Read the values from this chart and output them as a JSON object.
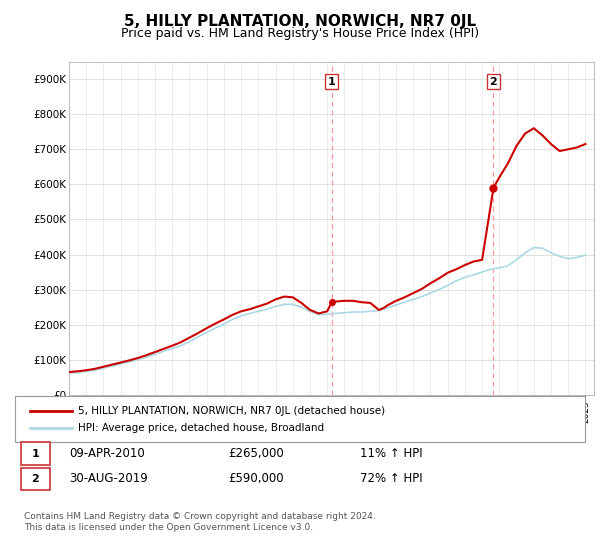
{
  "title": "5, HILLY PLANTATION, NORWICH, NR7 0JL",
  "subtitle": "Price paid vs. HM Land Registry's House Price Index (HPI)",
  "title_fontsize": 11,
  "subtitle_fontsize": 9,
  "ylim": [
    0,
    950000
  ],
  "yticks": [
    0,
    100000,
    200000,
    300000,
    400000,
    500000,
    600000,
    700000,
    800000,
    900000
  ],
  "ytick_labels": [
    "£0",
    "£100K",
    "£200K",
    "£300K",
    "£400K",
    "£500K",
    "£600K",
    "£700K",
    "£800K",
    "£900K"
  ],
  "hpi_color": "#add8e6",
  "price_color": "#cc0000",
  "dashed_line_color": "#ff9999",
  "background_color": "#ffffff",
  "grid_color": "#e0e0e0",
  "sale1_year": 2010.27,
  "sale1_price": 265000,
  "sale1_label": "1",
  "sale2_year": 2019.66,
  "sale2_price": 590000,
  "sale2_label": "2",
  "legend_entries": [
    "5, HILLY PLANTATION, NORWICH, NR7 0JL (detached house)",
    "HPI: Average price, detached house, Broadland"
  ],
  "table_rows": [
    {
      "num": "1",
      "date": "09-APR-2010",
      "price": "£265,000",
      "hpi": "11% ↑ HPI"
    },
    {
      "num": "2",
      "date": "30-AUG-2019",
      "price": "£590,000",
      "hpi": "72% ↑ HPI"
    }
  ],
  "footnote": "Contains HM Land Registry data © Crown copyright and database right 2024.\nThis data is licensed under the Open Government Licence v3.0.",
  "xmin": 1995,
  "xmax": 2025.5,
  "hpi_data_x": [
    1995.0,
    1995.5,
    1996.0,
    1996.5,
    1997.0,
    1997.5,
    1998.0,
    1998.5,
    1999.0,
    1999.5,
    2000.0,
    2000.5,
    2001.0,
    2001.5,
    2002.0,
    2002.5,
    2003.0,
    2003.5,
    2004.0,
    2004.5,
    2005.0,
    2005.5,
    2006.0,
    2006.5,
    2007.0,
    2007.5,
    2008.0,
    2008.5,
    2009.0,
    2009.5,
    2010.0,
    2010.5,
    2011.0,
    2011.5,
    2012.0,
    2012.5,
    2013.0,
    2013.5,
    2014.0,
    2014.5,
    2015.0,
    2015.5,
    2016.0,
    2016.5,
    2017.0,
    2017.5,
    2018.0,
    2018.5,
    2019.0,
    2019.5,
    2020.0,
    2020.5,
    2021.0,
    2021.5,
    2022.0,
    2022.5,
    2023.0,
    2023.5,
    2024.0,
    2024.5,
    2025.0
  ],
  "hpi_data_y": [
    62000,
    63000,
    67000,
    70000,
    76000,
    82000,
    88000,
    94000,
    100000,
    108000,
    116000,
    124000,
    132000,
    140000,
    152000,
    165000,
    178000,
    190000,
    202000,
    215000,
    225000,
    232000,
    238000,
    244000,
    252000,
    258000,
    258000,
    250000,
    238000,
    228000,
    230000,
    232000,
    234000,
    236000,
    236000,
    238000,
    240000,
    248000,
    256000,
    264000,
    272000,
    280000,
    290000,
    300000,
    312000,
    325000,
    335000,
    342000,
    350000,
    358000,
    362000,
    368000,
    385000,
    405000,
    420000,
    418000,
    405000,
    395000,
    388000,
    392000,
    398000
  ],
  "price_data_x": [
    1995.0,
    1995.5,
    1996.0,
    1996.5,
    1997.0,
    1997.5,
    1998.0,
    1998.5,
    1999.0,
    1999.5,
    2000.0,
    2000.5,
    2001.0,
    2001.5,
    2002.0,
    2002.5,
    2003.0,
    2003.5,
    2004.0,
    2004.5,
    2005.0,
    2005.5,
    2006.0,
    2006.5,
    2007.0,
    2007.5,
    2008.0,
    2008.5,
    2009.0,
    2009.5,
    2010.0,
    2010.27,
    2010.5,
    2011.0,
    2011.5,
    2012.0,
    2012.5,
    2013.0,
    2013.3,
    2013.5,
    2014.0,
    2014.5,
    2015.0,
    2015.5,
    2016.0,
    2016.5,
    2017.0,
    2017.5,
    2018.0,
    2018.5,
    2019.0,
    2019.66,
    2020.0,
    2020.5,
    2021.0,
    2021.5,
    2022.0,
    2022.5,
    2023.0,
    2023.5,
    2024.0,
    2024.5,
    2025.0
  ],
  "price_data_y": [
    65000,
    67000,
    70000,
    74000,
    80000,
    86000,
    92000,
    98000,
    105000,
    113000,
    122000,
    131000,
    140000,
    150000,
    163000,
    176000,
    190000,
    203000,
    215000,
    228000,
    238000,
    244000,
    252000,
    260000,
    272000,
    280000,
    278000,
    262000,
    242000,
    232000,
    238000,
    265000,
    266000,
    268000,
    268000,
    264000,
    262000,
    242000,
    248000,
    255000,
    268000,
    278000,
    290000,
    302000,
    318000,
    332000,
    348000,
    358000,
    370000,
    380000,
    385000,
    590000,
    620000,
    660000,
    710000,
    745000,
    760000,
    740000,
    715000,
    695000,
    700000,
    705000,
    715000
  ]
}
